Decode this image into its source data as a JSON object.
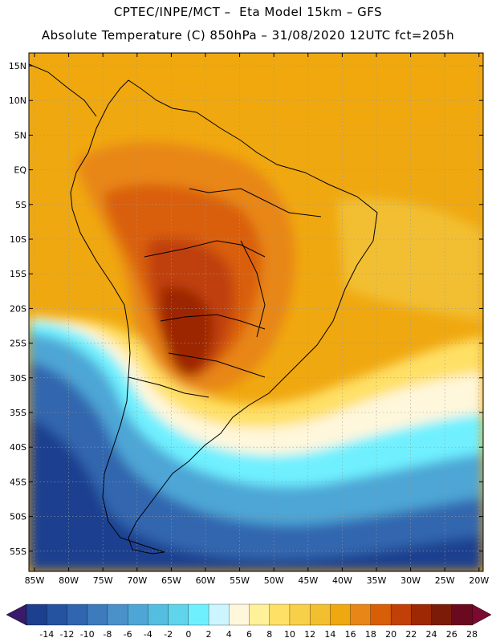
{
  "title_line1": "CPTEC/INPE/MCT –  Eta Model 15km – GFS",
  "title_line2": "Absolute Temperature (C) 850hPa – 31/08/2020 12UTC fct=205h",
  "lat_labels": [
    "15N",
    "10N",
    "5N",
    "EQ",
    "5S",
    "10S",
    "15S",
    "20S",
    "25S",
    "30S",
    "35S",
    "40S",
    "45S",
    "50S",
    "55S"
  ],
  "lon_labels": [
    "85W",
    "80W",
    "75W",
    "70W",
    "65W",
    "60W",
    "55W",
    "50W",
    "45W",
    "40W",
    "35W",
    "30W",
    "25W",
    "20W"
  ],
  "colorbar": {
    "colors": [
      "#1c3f8f",
      "#25539f",
      "#3066af",
      "#3d7bbd",
      "#4a90c9",
      "#4ea6d6",
      "#54bde0",
      "#5fd4ea",
      "#6ff0ff",
      "#ccf5ff",
      "#fff7dc",
      "#fff09a",
      "#ffe066",
      "#f8cf48",
      "#f2bf30",
      "#f0a810",
      "#e88618",
      "#d95e08",
      "#c04008",
      "#9c2804",
      "#7a1c08",
      "#6a0a20"
    ],
    "low_end": "#3a1a6a",
    "high_end": "#7a0a30",
    "labels": [
      "-14",
      "-12",
      "-10",
      "-8",
      "-6",
      "-4",
      "-2",
      "0",
      "2",
      "4",
      "6",
      "8",
      "10",
      "12",
      "14",
      "16",
      "18",
      "20",
      "22",
      "24",
      "26",
      "28"
    ]
  }
}
